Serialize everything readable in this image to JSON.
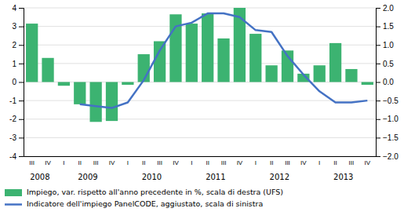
{
  "chart_data": {
    "type": "bar",
    "categories": [
      "III",
      "IV",
      "I",
      "II",
      "III",
      "IV",
      "I",
      "II",
      "III",
      "IV",
      "I",
      "II",
      "III",
      "IV",
      "I",
      "II",
      "III",
      "IV",
      "I",
      "II",
      "III",
      "IV"
    ],
    "annotations": [
      {
        "text": "2008",
        "x": 0.5
      },
      {
        "text": "2009",
        "x": 3.5
      },
      {
        "text": "2010",
        "x": 7.5
      },
      {
        "text": "2011",
        "x": 11.5
      },
      {
        "text": "2012",
        "x": 15.5
      },
      {
        "text": "2013",
        "x": 19.5
      }
    ],
    "series": [
      {
        "name": "Impiego, var. rispetto all'anno precedente in %, scala di destra (UFS)",
        "type": "bar",
        "color": "#3cb371",
        "values": [
          3.15,
          1.3,
          -0.2,
          -1.2,
          -2.15,
          -2.1,
          -0.15,
          1.5,
          2.2,
          3.65,
          3.15,
          3.7,
          2.35,
          4.0,
          2.6,
          0.9,
          1.7,
          0.45,
          0.9,
          2.1,
          0.7,
          -0.15
        ]
      },
      {
        "name": "Indicatore dell'impiego PanelCODE, aggiustato, scala di sinistra",
        "type": "line",
        "color": "#4472c4",
        "axis": "y2",
        "values": [
          null,
          null,
          null,
          -0.6,
          -0.65,
          -0.7,
          -0.55,
          0.05,
          0.85,
          1.5,
          1.6,
          1.85,
          1.85,
          1.75,
          1.4,
          1.35,
          0.7,
          0.2,
          -0.25,
          -0.55,
          -0.55,
          -0.5
        ]
      }
    ],
    "ylim": [
      -4,
      4
    ],
    "yticks": [
      -4,
      -3,
      -2,
      -1,
      0,
      1,
      2,
      3,
      4
    ],
    "y2lim": [
      -2,
      2
    ],
    "y2ticks": [
      {
        "value": -2,
        "label": "−2.0"
      },
      {
        "value": -1.5,
        "label": "−1.5"
      },
      {
        "value": -1,
        "label": "−1.0"
      },
      {
        "value": -0.5,
        "label": "−0.5"
      },
      {
        "value": 0,
        "label": "0.0"
      },
      {
        "value": 0.5,
        "label": "0.5"
      },
      {
        "value": 1,
        "label": "1.0"
      },
      {
        "value": 1.5,
        "label": "1.5"
      },
      {
        "value": 2,
        "label": "2.0"
      }
    ],
    "grid": true,
    "legend": "lower left"
  }
}
